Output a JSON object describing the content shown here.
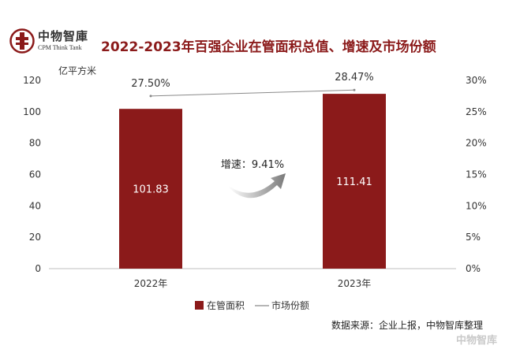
{
  "header": {
    "logo_cn": "中物智庫",
    "logo_en": "CPM Think Tank",
    "title": "2022-2023年百强企业在管面积总值、增速及市场份额"
  },
  "colors": {
    "bar": "#8B1A1A",
    "title": "#8B1A1A",
    "line": "#8a8a8a"
  },
  "chart_data": {
    "type": "bar",
    "categories": [
      "2022年",
      "2023年"
    ],
    "series": [
      {
        "name": "在管面积",
        "type": "bar",
        "axis": "left",
        "values": [
          101.83,
          111.41
        ],
        "data_labels": [
          "101.83",
          "111.41"
        ]
      },
      {
        "name": "市场份额",
        "type": "line",
        "axis": "right",
        "values": [
          27.5,
          28.47
        ],
        "data_labels": [
          "27.50%",
          "28.47%"
        ]
      }
    ],
    "left_axis": {
      "unit_label": "亿平方米",
      "ylim": [
        0,
        120
      ],
      "ticks": [
        "0",
        "20",
        "40",
        "60",
        "80",
        "100",
        "120"
      ]
    },
    "right_axis": {
      "ylim": [
        0,
        30
      ],
      "ticks": [
        "0%",
        "5%",
        "10%",
        "15%",
        "20%",
        "25%",
        "30%"
      ]
    },
    "annotation": {
      "text": "增速：9.41%",
      "icon": "curved-arrow-icon"
    },
    "legend": {
      "placement": "bottom",
      "items": [
        "在管面积",
        "市场份额"
      ]
    },
    "grid": false
  },
  "footer": {
    "source": "数据来源：企业上报，中物智库整理",
    "watermark": "中物智库"
  }
}
